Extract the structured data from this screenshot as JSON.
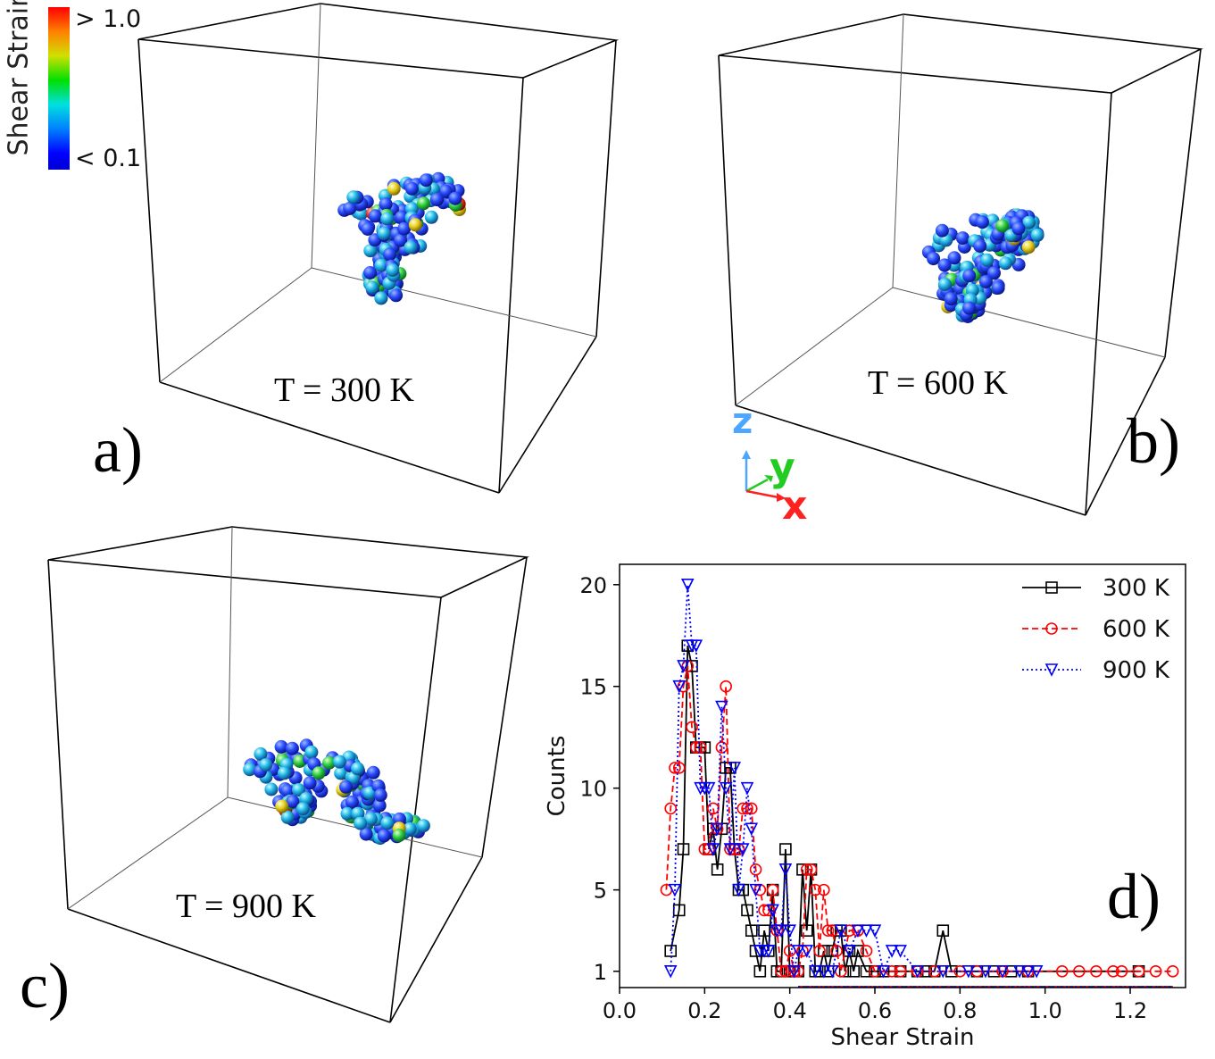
{
  "colorbar": {
    "title": "Shear Strain",
    "max_label": "> 1.0",
    "min_label": "< 0.1",
    "colors": [
      "#0000ff",
      "#0080ff",
      "#00e0e0",
      "#00e000",
      "#c0e000",
      "#ff8000",
      "#ff0000"
    ]
  },
  "panels": {
    "a": {
      "label": "a)",
      "temperature": "T = 300 K"
    },
    "b": {
      "label": "b)",
      "temperature": "T = 600 K"
    },
    "c": {
      "label": "c)",
      "temperature": "T = 900 K"
    },
    "d": {
      "label": "d)"
    }
  },
  "axes_triad": {
    "z": "z",
    "y": "y",
    "x": "x",
    "z_color": "#4da6ff",
    "y_color": "#22cc22",
    "x_color": "#ff2020"
  },
  "chart_data": {
    "type": "line",
    "title": "",
    "xlabel": "Shear Strain",
    "ylabel": "Counts",
    "xlim": [
      0.0,
      1.33
    ],
    "ylim": [
      0.2,
      21.0
    ],
    "xticks": [
      "0.0",
      "0.2",
      "0.4",
      "0.6",
      "0.8",
      "1.0",
      "1.2"
    ],
    "xtick_values": [
      0.0,
      0.2,
      0.4,
      0.6,
      0.8,
      1.0,
      1.2
    ],
    "yticks": [
      "1",
      "5",
      "10",
      "15",
      "20"
    ],
    "ytick_values": [
      1,
      5,
      10,
      15,
      20
    ],
    "legend_position": "top-right",
    "series": [
      {
        "name": "300 K",
        "color": "#000000",
        "marker": "square",
        "line": "solid",
        "x": [
          0.12,
          0.14,
          0.15,
          0.16,
          0.17,
          0.18,
          0.19,
          0.2,
          0.21,
          0.22,
          0.23,
          0.24,
          0.25,
          0.26,
          0.27,
          0.28,
          0.29,
          0.3,
          0.31,
          0.32,
          0.33,
          0.34,
          0.35,
          0.36,
          0.37,
          0.38,
          0.39,
          0.4,
          0.41,
          0.42,
          0.43,
          0.44,
          0.45,
          0.46,
          0.47,
          0.48,
          0.49,
          0.5,
          0.51,
          0.52,
          0.53,
          0.54,
          0.55,
          0.56,
          0.58,
          0.6,
          0.62,
          0.66,
          0.7,
          0.72,
          0.74,
          0.76,
          0.78,
          0.84,
          0.88,
          0.92,
          0.96,
          1.22
        ],
        "y": [
          2,
          4,
          7,
          17,
          16,
          12,
          12,
          12,
          7,
          8,
          6,
          8,
          11,
          11,
          7,
          5,
          5,
          4,
          3,
          2,
          1,
          3,
          2,
          5,
          1,
          1,
          7,
          1,
          1,
          1,
          6,
          3,
          6,
          1,
          1,
          2,
          1,
          2,
          3,
          3,
          1,
          2,
          1,
          2,
          1,
          1,
          1,
          1,
          1,
          1,
          1,
          3,
          1,
          1,
          1,
          1,
          1,
          1
        ]
      },
      {
        "name": "600 K",
        "color": "#ff0000",
        "marker": "circle",
        "line": "dashed",
        "x": [
          0.11,
          0.12,
          0.13,
          0.14,
          0.15,
          0.16,
          0.17,
          0.18,
          0.19,
          0.2,
          0.21,
          0.22,
          0.23,
          0.24,
          0.25,
          0.26,
          0.27,
          0.28,
          0.29,
          0.3,
          0.31,
          0.32,
          0.33,
          0.34,
          0.35,
          0.36,
          0.37,
          0.38,
          0.39,
          0.4,
          0.41,
          0.42,
          0.43,
          0.44,
          0.45,
          0.46,
          0.47,
          0.48,
          0.49,
          0.5,
          0.51,
          0.52,
          0.54,
          0.56,
          0.58,
          0.6,
          0.64,
          0.66,
          0.7,
          0.74,
          0.8,
          0.84,
          0.9,
          0.96,
          1.04,
          1.08,
          1.12,
          1.16,
          1.18,
          1.22,
          1.26,
          1.3
        ],
        "y": [
          5,
          9,
          11,
          11,
          15,
          16,
          13,
          12,
          12,
          7,
          7,
          9,
          8,
          12,
          15,
          7,
          7,
          7,
          9,
          9,
          9,
          6,
          5,
          4,
          4,
          5,
          3,
          1,
          1,
          2,
          1,
          1,
          2,
          6,
          6,
          5,
          2,
          5,
          3,
          3,
          2,
          1,
          3,
          3,
          2,
          1,
          1,
          1,
          1,
          1,
          1,
          1,
          1,
          1,
          1,
          1,
          1,
          1,
          1,
          1,
          1,
          1
        ]
      },
      {
        "name": "900 K",
        "color": "#0000ff",
        "marker": "triangle-down",
        "line": "dotted",
        "x": [
          0.12,
          0.13,
          0.14,
          0.15,
          0.16,
          0.17,
          0.18,
          0.19,
          0.2,
          0.21,
          0.22,
          0.23,
          0.24,
          0.25,
          0.26,
          0.27,
          0.28,
          0.29,
          0.3,
          0.31,
          0.32,
          0.33,
          0.34,
          0.35,
          0.36,
          0.37,
          0.38,
          0.39,
          0.4,
          0.41,
          0.42,
          0.44,
          0.46,
          0.48,
          0.5,
          0.52,
          0.54,
          0.56,
          0.58,
          0.6,
          0.62,
          0.64,
          0.66,
          0.7,
          0.76,
          0.82,
          0.86,
          0.9,
          0.94,
          0.96,
          0.98
        ],
        "y": [
          1,
          5,
          15,
          16,
          20,
          17,
          17,
          10,
          10,
          10,
          7,
          8,
          14,
          10,
          7,
          11,
          5,
          7,
          10,
          8,
          5,
          2,
          2,
          2,
          4,
          3,
          3,
          6,
          3,
          1,
          2,
          2,
          1,
          1,
          1,
          3,
          2,
          3,
          3,
          3,
          1,
          2,
          2,
          1,
          1,
          1,
          1,
          1,
          1,
          1,
          1
        ]
      }
    ]
  }
}
